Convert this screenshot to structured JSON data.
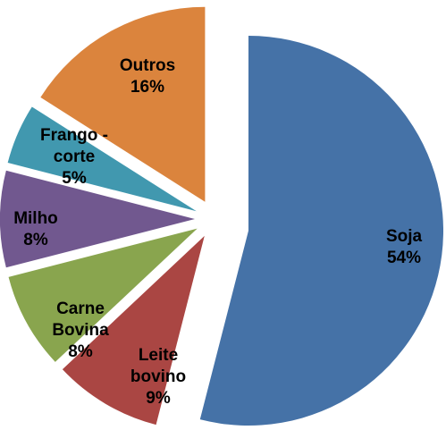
{
  "chart_data": {
    "type": "pie",
    "exploded": true,
    "labels_on_slices": true,
    "legend": "none",
    "slices": [
      {
        "label_lines": [
          "Soja",
          "54%"
        ],
        "category": "Soja",
        "percent": 54,
        "color": "#4572A7"
      },
      {
        "label_lines": [
          "Leite",
          "bovino",
          "9%"
        ],
        "category": "Leite bovino",
        "percent": 9,
        "color": "#AA4643"
      },
      {
        "label_lines": [
          "Carne",
          "Bovina",
          "8%"
        ],
        "category": "Carne Bovina",
        "percent": 8,
        "color": "#89A54E"
      },
      {
        "label_lines": [
          "Milho",
          "8%"
        ],
        "category": "Milho",
        "percent": 8,
        "color": "#71588F"
      },
      {
        "label_lines": [
          "Frango -",
          "corte",
          "5%"
        ],
        "category": "Frango - corte",
        "percent": 5,
        "color": "#4198AF"
      },
      {
        "label_lines": [
          "Outros",
          "16%"
        ],
        "category": "Outros",
        "percent": 16,
        "color": "#DB843D"
      }
    ]
  }
}
